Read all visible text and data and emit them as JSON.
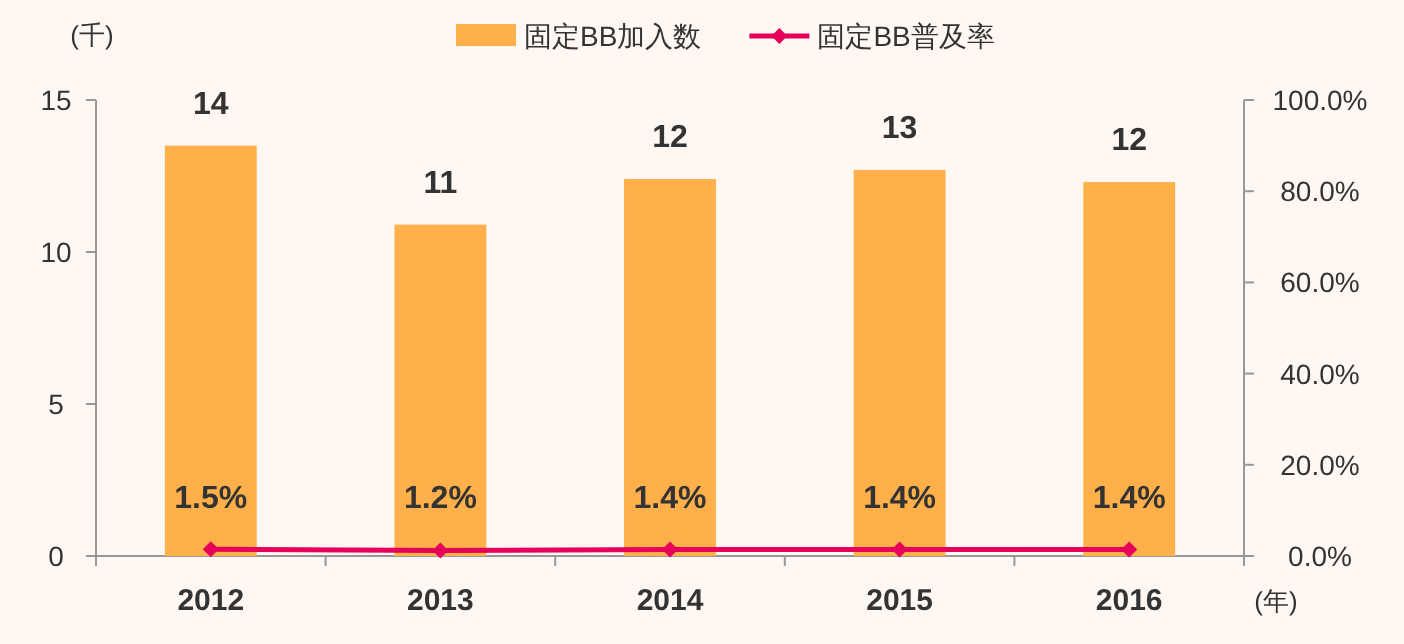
{
  "chart_data": {
    "type": "bar",
    "categories": [
      "2012",
      "2013",
      "2014",
      "2015",
      "2016"
    ],
    "series": [
      {
        "name": "固定BB加入数",
        "color": "#ffb04a",
        "values": [
          13.5,
          10.9,
          12.4,
          12.7,
          12.3
        ],
        "value_labels": [
          "14",
          "11",
          "12",
          "13",
          "12"
        ]
      },
      {
        "name": "固定BB普及率",
        "type": "line",
        "axis": "y2",
        "color": "#e6005a",
        "marker": "diamond",
        "values": [
          1.5,
          1.2,
          1.4,
          1.4,
          1.4
        ],
        "value_labels": [
          "1.5%",
          "1.2%",
          "1.4%",
          "1.4%",
          "1.4%"
        ]
      }
    ],
    "ylabel": "(千)",
    "xlabel": "(年)",
    "ylim": [
      0,
      15
    ],
    "yticks": [
      0,
      5,
      10,
      15
    ],
    "y2lim": [
      0,
      100
    ],
    "y2ticks": [
      {
        "value": 0,
        "label": "0.0%"
      },
      {
        "value": 20,
        "label": "20.0%"
      },
      {
        "value": 40,
        "label": "40.0%"
      },
      {
        "value": 60,
        "label": "60.0%"
      },
      {
        "value": 80,
        "label": "80.0%"
      },
      {
        "value": 100,
        "label": "100.0%"
      }
    ],
    "legend": "top",
    "grid": false
  }
}
